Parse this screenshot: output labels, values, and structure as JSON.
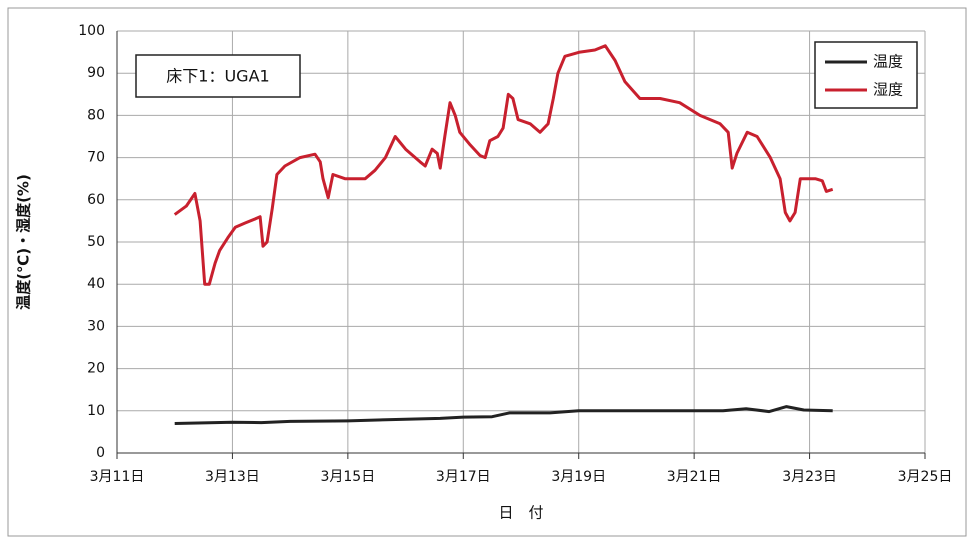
{
  "chart_data": {
    "type": "line",
    "annotation": "床下1：UGA1",
    "xlabel": "日　付",
    "ylabel": "温度(℃)・湿度(%)",
    "xlim": [
      11,
      25
    ],
    "xticks": [
      {
        "value": 11,
        "label": "3月11日"
      },
      {
        "value": 13,
        "label": "3月13日"
      },
      {
        "value": 15,
        "label": "3月15日"
      },
      {
        "value": 17,
        "label": "3月17日"
      },
      {
        "value": 19,
        "label": "3月19日"
      },
      {
        "value": 21,
        "label": "3月21日"
      },
      {
        "value": 23,
        "label": "3月23日"
      },
      {
        "value": 25,
        "label": "3月25日"
      }
    ],
    "ylim": [
      0,
      100
    ],
    "yticks": [
      0,
      10,
      20,
      30,
      40,
      50,
      60,
      70,
      80,
      90,
      100
    ],
    "grid": true,
    "legend": "upper right",
    "series": [
      {
        "name": "温度",
        "color": "#222222",
        "x": [
          12.0,
          13.0,
          13.5,
          14.0,
          15.0,
          16.0,
          16.6,
          17.0,
          17.5,
          17.8,
          18.5,
          19.0,
          20.0,
          21.0,
          21.5,
          21.9,
          22.3,
          22.6,
          22.9,
          23.4
        ],
        "values": [
          7,
          7.3,
          7.2,
          7.5,
          7.6,
          8,
          8.2,
          8.5,
          8.6,
          9.5,
          9.5,
          10,
          10,
          10,
          10,
          10.5,
          9.8,
          11,
          10.2,
          10
        ]
      },
      {
        "name": "湿度",
        "color": "#c8202e",
        "x": [
          12.0,
          12.2,
          12.35,
          12.44,
          12.52,
          12.6,
          12.7,
          12.78,
          12.92,
          13.05,
          13.22,
          13.4,
          13.48,
          13.53,
          13.6,
          13.69,
          13.77,
          13.91,
          14.17,
          14.43,
          14.52,
          14.57,
          14.66,
          14.74,
          14.95,
          15.3,
          15.47,
          15.65,
          15.82,
          16.0,
          16.25,
          16.34,
          16.46,
          16.55,
          16.6,
          16.68,
          16.77,
          16.86,
          16.94,
          17.12,
          17.29,
          17.38,
          17.46,
          17.6,
          17.69,
          17.78,
          17.86,
          17.95,
          18.16,
          18.33,
          18.47,
          18.56,
          18.64,
          18.76,
          19.02,
          19.28,
          19.46,
          19.63,
          19.8,
          20.06,
          20.41,
          20.75,
          21.1,
          21.45,
          21.59,
          21.66,
          21.74,
          21.92,
          22.09,
          22.32,
          22.49,
          22.58,
          22.66,
          22.75,
          22.84,
          23.1,
          23.22,
          23.29,
          23.4
        ],
        "values": [
          56.5,
          58.5,
          61.5,
          55,
          40,
          40,
          45,
          48,
          51,
          53.5,
          54.5,
          55.5,
          56,
          49,
          50,
          58,
          66,
          68,
          70,
          70.8,
          69,
          65,
          60.5,
          66,
          65,
          65,
          67,
          70,
          75,
          72,
          69,
          68,
          72,
          71,
          67.5,
          75,
          83,
          80,
          76,
          73,
          70.5,
          70,
          74,
          75,
          77,
          85,
          84,
          79,
          78,
          76,
          78,
          84,
          90,
          94,
          95,
          95.5,
          96.5,
          93,
          88,
          84,
          84,
          83,
          80,
          78,
          76,
          67.5,
          71,
          76,
          75,
          70,
          65,
          57,
          55,
          57,
          65,
          65,
          64.5,
          62,
          62.5
        ]
      }
    ]
  }
}
